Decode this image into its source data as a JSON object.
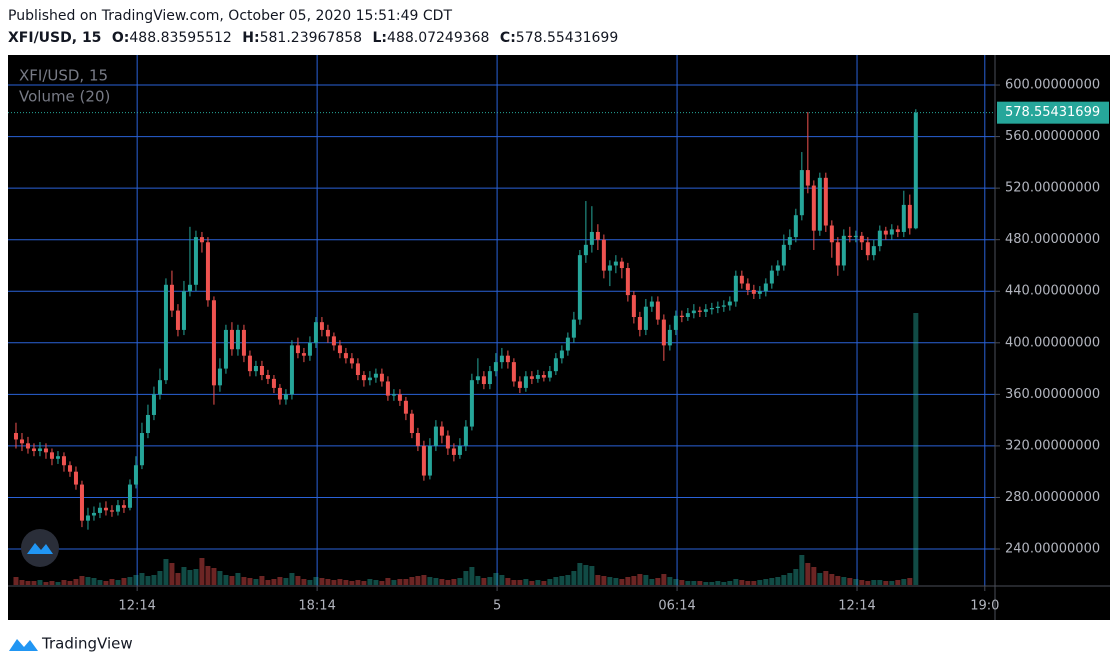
{
  "header": {
    "published": "Published on TradingView.com, October 05, 2020 15:51:49 CDT",
    "symbol": "XFI/USD, 15",
    "ohlc_labels": [
      "O:",
      "H:",
      "L:",
      "C:"
    ]
  },
  "brand": "TradingView",
  "chart_data": {
    "type": "candlestick",
    "volume_label": "Volume (20)",
    "up_color": "#26a69a",
    "down_color": "#ef5350",
    "grid_color": "#2a62d8",
    "ylim": [
      211.3,
      623.3
    ],
    "yticks": [
      {
        "value": 240,
        "label": "240.00000000"
      },
      {
        "value": 280,
        "label": "280.00000000"
      },
      {
        "value": 320,
        "label": "320.00000000"
      },
      {
        "value": 360,
        "label": "360.00000000"
      },
      {
        "value": 400,
        "label": "400.00000000"
      },
      {
        "value": 440,
        "label": "440.00000000"
      },
      {
        "value": 480,
        "label": "480.00000000"
      },
      {
        "value": 520,
        "label": "520.00000000"
      },
      {
        "value": 560,
        "label": "560.00000000"
      },
      {
        "value": 600,
        "label": "600.00000000"
      }
    ],
    "xlim": [
      -1.33,
      163.2
    ],
    "xticks": [
      {
        "value": 20.2,
        "label": "12:14"
      },
      {
        "value": 50.2,
        "label": "18:14"
      },
      {
        "value": 80.2,
        "label": "5"
      },
      {
        "value": 110.2,
        "label": "06:14"
      },
      {
        "value": 140.2,
        "label": "12:14"
      },
      {
        "value": 161.5,
        "label": "19:0"
      }
    ],
    "open": [
      330,
      325,
      322,
      318,
      316,
      318,
      315,
      310,
      312,
      305,
      300,
      290,
      262,
      266,
      268,
      272,
      270,
      269,
      274,
      272,
      290,
      305,
      330,
      344,
      360,
      371,
      445,
      425,
      410,
      440,
      445,
      482,
      478,
      433,
      367,
      380,
      410,
      395,
      410,
      390,
      378,
      382,
      375,
      372,
      365,
      356,
      360,
      398,
      392,
      390,
      400,
      416,
      410,
      405,
      398,
      392,
      388,
      384,
      375,
      371,
      373,
      376,
      370,
      359,
      360,
      355,
      345,
      330,
      320,
      297,
      320,
      335,
      328,
      318,
      313,
      320,
      335,
      371,
      374,
      368,
      378,
      385,
      390,
      385,
      370,
      365,
      374,
      372,
      375,
      373,
      378,
      388,
      394,
      404,
      418,
      468,
      476,
      486,
      480,
      456,
      460,
      463,
      458,
      437,
      420,
      410,
      428,
      432,
      418,
      398,
      410,
      421,
      420,
      423,
      425,
      424,
      426,
      427,
      428,
      429,
      432,
      452,
      446,
      441,
      438,
      440,
      446,
      456,
      460,
      476,
      482,
      499,
      534,
      522,
      487,
      528,
      491,
      478,
      460,
      483,
      482,
      483,
      478,
      468,
      475,
      487,
      484,
      488,
      486,
      507,
      488.83595512
    ],
    "high": [
      338,
      330,
      327,
      322,
      323,
      322,
      318,
      316,
      315,
      308,
      304,
      293,
      272,
      273,
      276,
      277,
      274,
      278,
      278,
      294,
      312,
      338,
      352,
      366,
      380,
      450,
      456,
      430,
      448,
      490,
      487,
      486,
      482,
      436,
      388,
      414,
      416,
      414,
      414,
      394,
      386,
      386,
      379,
      375,
      368,
      364,
      402,
      404,
      396,
      405,
      420,
      420,
      414,
      408,
      402,
      396,
      392,
      388,
      378,
      378,
      380,
      380,
      374,
      364,
      364,
      358,
      348,
      334,
      324,
      326,
      340,
      339,
      332,
      322,
      326,
      340,
      376,
      388,
      378,
      382,
      392,
      396,
      394,
      388,
      374,
      378,
      378,
      379,
      378,
      382,
      392,
      398,
      408,
      424,
      472,
      510,
      506,
      492,
      484,
      464,
      468,
      466,
      462,
      440,
      424,
      434,
      436,
      436,
      422,
      414,
      425,
      425,
      427,
      430,
      428,
      430,
      431,
      432,
      433,
      436,
      456,
      456,
      450,
      445,
      444,
      450,
      460,
      464,
      484,
      488,
      504,
      548,
      579,
      526,
      532,
      532,
      495,
      482,
      488,
      490,
      487,
      486,
      482,
      480,
      491,
      490,
      492,
      491,
      518,
      515,
      581.23967858
    ],
    "low": [
      318,
      316,
      314,
      312,
      312,
      310,
      305,
      306,
      300,
      296,
      286,
      257,
      255,
      262,
      264,
      266,
      265,
      266,
      268,
      270,
      287,
      302,
      326,
      340,
      356,
      368,
      420,
      405,
      406,
      436,
      440,
      470,
      428,
      352,
      362,
      376,
      390,
      390,
      385,
      374,
      374,
      371,
      368,
      361,
      352,
      352,
      356,
      388,
      385,
      386,
      396,
      405,
      400,
      394,
      388,
      384,
      380,
      371,
      366,
      367,
      369,
      366,
      355,
      355,
      351,
      340,
      326,
      316,
      293,
      294,
      316,
      322,
      313,
      308,
      310,
      316,
      332,
      368,
      364,
      364,
      374,
      380,
      380,
      366,
      361,
      362,
      368,
      369,
      370,
      370,
      375,
      384,
      390,
      400,
      414,
      462,
      470,
      472,
      450,
      444,
      454,
      450,
      432,
      415,
      405,
      406,
      424,
      414,
      386,
      394,
      406,
      416,
      417,
      419,
      420,
      420,
      422,
      423,
      424,
      425,
      428,
      442,
      437,
      434,
      434,
      436,
      442,
      452,
      456,
      472,
      478,
      495,
      516,
      472,
      483,
      486,
      466,
      452,
      456,
      478,
      478,
      472,
      464,
      464,
      471,
      480,
      480,
      482,
      482,
      484,
      488.07249368
    ],
    "close": [
      325,
      322,
      318,
      316,
      318,
      315,
      310,
      312,
      305,
      300,
      290,
      262,
      266,
      268,
      272,
      270,
      269,
      274,
      272,
      290,
      305,
      330,
      344,
      360,
      371,
      445,
      425,
      410,
      440,
      445,
      482,
      478,
      433,
      367,
      380,
      410,
      395,
      410,
      390,
      378,
      382,
      375,
      372,
      365,
      356,
      360,
      398,
      392,
      390,
      400,
      416,
      410,
      405,
      398,
      392,
      388,
      384,
      375,
      371,
      373,
      376,
      370,
      359,
      360,
      355,
      345,
      330,
      320,
      297,
      320,
      335,
      328,
      318,
      313,
      320,
      335,
      371,
      374,
      368,
      378,
      385,
      390,
      385,
      370,
      365,
      374,
      372,
      375,
      373,
      378,
      388,
      394,
      404,
      418,
      468,
      476,
      486,
      480,
      456,
      460,
      463,
      458,
      437,
      420,
      410,
      428,
      432,
      418,
      398,
      410,
      421,
      420,
      423,
      425,
      424,
      426,
      427,
      428,
      429,
      432,
      452,
      446,
      441,
      438,
      440,
      446,
      456,
      460,
      476,
      482,
      499,
      534,
      522,
      487,
      528,
      491,
      478,
      460,
      483,
      482,
      483,
      478,
      468,
      475,
      487,
      484,
      488,
      486,
      507,
      488.83595512,
      578.55431699
    ],
    "volume": [
      8,
      5,
      4,
      4,
      5,
      3,
      4,
      3,
      5,
      4,
      6,
      9,
      8,
      7,
      5,
      4,
      6,
      5,
      7,
      8,
      10,
      12,
      9,
      10,
      14,
      26,
      22,
      12,
      18,
      15,
      16,
      27,
      19,
      17,
      14,
      10,
      9,
      12,
      8,
      7,
      6,
      9,
      5,
      6,
      8,
      7,
      12,
      9,
      6,
      5,
      8,
      7,
      6,
      5,
      6,
      5,
      4,
      5,
      4,
      6,
      5,
      4,
      7,
      5,
      6,
      6,
      8,
      9,
      10,
      8,
      7,
      6,
      5,
      6,
      7,
      14,
      18,
      9,
      7,
      8,
      12,
      10,
      7,
      5,
      5,
      6,
      4,
      5,
      4,
      6,
      8,
      9,
      10,
      14,
      22,
      20,
      19,
      10,
      9,
      8,
      7,
      6,
      8,
      9,
      11,
      10,
      6,
      7,
      11,
      8,
      6,
      5,
      4,
      4,
      4,
      3,
      3,
      4,
      3,
      4,
      6,
      5,
      4,
      4,
      5,
      6,
      7,
      8,
      10,
      12,
      16,
      30,
      22,
      18,
      12,
      14,
      11,
      9,
      8,
      7,
      6,
      5,
      4,
      5,
      5,
      4,
      4,
      5,
      6,
      7,
      272
    ]
  }
}
